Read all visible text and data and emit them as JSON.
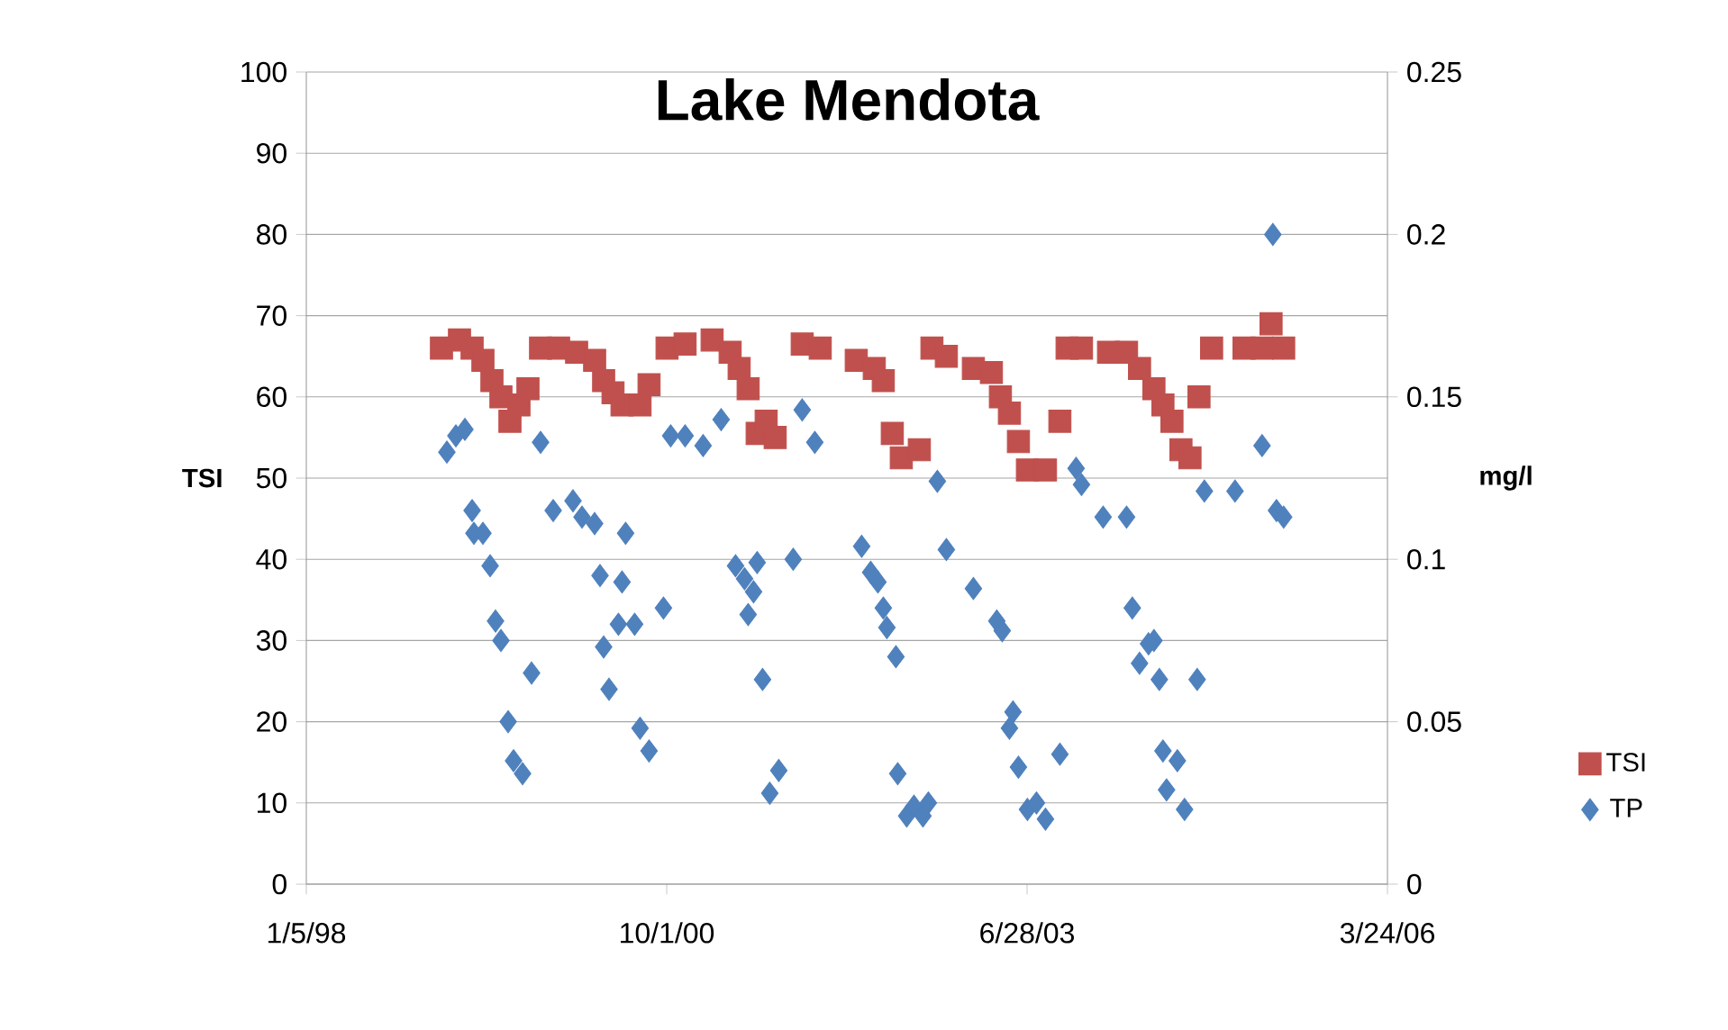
{
  "chart_data": {
    "type": "scatter",
    "title": "Lake Mendota",
    "ylabel": "TSI",
    "y2label": "mg/l",
    "xlim": [
      "1998-01-05",
      "2006-03-24"
    ],
    "xticks": [
      {
        "value": "1998-01-05",
        "label": "1/5/98"
      },
      {
        "value": "2000-10-01",
        "label": "10/1/00"
      },
      {
        "value": "2003-06-28",
        "label": "6/28/03"
      },
      {
        "value": "2006-03-24",
        "label": "3/24/06"
      }
    ],
    "ylim": [
      0,
      100
    ],
    "yticks": [
      0,
      10,
      20,
      30,
      40,
      50,
      60,
      70,
      80,
      90,
      100
    ],
    "y2lim": [
      0,
      0.25
    ],
    "y2ticks": [
      0,
      0.05,
      0.1,
      0.15,
      0.2,
      0.25
    ],
    "grid": "y",
    "legend": "right",
    "series": [
      {
        "name": "TSI",
        "color": "#c0504d",
        "marker": "square",
        "x": [
          "1999-01-15",
          "1999-03-06",
          "1999-04-10",
          "1999-05-10",
          "1999-06-04",
          "1999-06-29",
          "1999-07-24",
          "1999-08-18",
          "1999-09-12",
          "1999-10-17",
          "1999-12-06",
          "2000-01-25",
          "2000-03-15",
          "2000-04-09",
          "2000-05-05",
          "2000-05-30",
          "2000-07-19",
          "2000-08-13",
          "2000-10-02",
          "2000-11-21",
          "2001-02-04",
          "2001-03-26",
          "2001-04-20",
          "2001-05-15",
          "2001-06-09",
          "2001-07-04",
          "2001-07-29",
          "2001-10-12",
          "2001-12-01",
          "2002-03-11",
          "2002-04-30",
          "2002-05-25",
          "2002-06-19",
          "2002-07-14",
          "2002-09-02",
          "2002-10-07",
          "2002-11-16",
          "2003-01-30",
          "2003-03-21",
          "2003-04-15",
          "2003-05-10",
          "2003-06-04",
          "2003-06-29",
          "2003-08-18",
          "2003-09-27",
          "2003-10-17",
          "2003-11-26",
          "2004-02-09",
          "2004-03-30",
          "2004-05-05",
          "2004-06-14",
          "2004-07-09",
          "2004-08-03",
          "2004-08-28",
          "2004-09-22",
          "2004-10-17",
          "2004-11-21",
          "2005-02-19",
          "2005-04-10",
          "2005-05-05",
          "2005-06-09"
        ],
        "values": [
          66,
          67,
          66,
          64.5,
          62,
          60,
          57,
          59,
          61,
          66,
          66,
          65.5,
          64.5,
          62,
          60.5,
          59,
          59,
          61.5,
          66,
          66.5,
          67,
          65.5,
          63.5,
          61,
          55.5,
          57,
          55,
          66.5,
          66,
          64.5,
          63.5,
          62,
          55.5,
          52.5,
          53.5,
          66,
          65,
          63.5,
          63,
          60,
          58,
          54.5,
          51,
          51,
          57,
          66,
          66,
          65.5,
          65.5,
          63.5,
          61,
          59,
          57,
          53.5,
          52.5,
          60,
          66,
          66,
          66,
          69,
          66
        ]
      },
      {
        "name": "TP",
        "color": "#4f81bd",
        "marker": "diamond",
        "axis": "y2",
        "x": [
          "1999-01-30",
          "1999-02-24",
          "1999-03-21",
          "1999-04-10",
          "1999-04-15",
          "1999-05-10",
          "1999-05-30",
          "1999-06-14",
          "1999-06-29",
          "1999-07-19",
          "1999-08-03",
          "1999-08-28",
          "1999-09-22",
          "1999-10-17",
          "1999-11-21",
          "2000-01-15",
          "2000-02-09",
          "2000-03-15",
          "2000-03-30",
          "2000-04-09",
          "2000-04-24",
          "2000-05-20",
          "2000-05-30",
          "2000-06-09",
          "2000-07-04",
          "2000-07-19",
          "2000-08-13",
          "2000-09-22",
          "2000-10-12",
          "2000-11-21",
          "2001-01-10",
          "2001-03-01",
          "2001-04-10",
          "2001-05-05",
          "2001-05-15",
          "2001-05-30",
          "2001-06-09",
          "2001-06-24",
          "2001-07-14",
          "2001-08-08",
          "2001-09-17",
          "2001-10-12",
          "2001-11-16",
          "2002-03-26",
          "2002-04-20",
          "2002-05-10",
          "2002-05-25",
          "2002-06-04",
          "2002-06-29",
          "2002-07-04",
          "2002-07-29",
          "2002-08-18",
          "2002-09-12",
          "2002-09-27",
          "2002-10-22",
          "2002-11-16",
          "2003-01-30",
          "2003-04-05",
          "2003-04-20",
          "2003-05-10",
          "2003-05-20",
          "2003-06-04",
          "2003-06-29",
          "2003-07-24",
          "2003-08-18",
          "2003-09-27",
          "2003-11-11",
          "2003-11-26",
          "2004-01-25",
          "2004-03-30",
          "2004-04-15",
          "2004-05-05",
          "2004-05-30",
          "2004-06-14",
          "2004-06-29",
          "2004-07-09",
          "2004-07-19",
          "2004-08-18",
          "2004-09-07",
          "2004-10-12",
          "2004-11-01",
          "2005-01-25",
          "2005-04-10",
          "2005-05-10",
          "2005-05-20",
          "2005-06-09"
        ],
        "values": [
          0.133,
          0.138,
          0.14,
          0.115,
          0.108,
          0.108,
          0.098,
          0.081,
          0.075,
          0.05,
          0.038,
          0.034,
          0.065,
          0.136,
          0.115,
          0.118,
          0.113,
          0.111,
          0.095,
          0.073,
          0.06,
          0.08,
          0.093,
          0.108,
          0.08,
          0.048,
          0.041,
          0.085,
          0.138,
          0.138,
          0.135,
          0.143,
          0.098,
          0.094,
          0.083,
          0.09,
          0.099,
          0.063,
          0.028,
          0.035,
          0.1,
          0.146,
          0.136,
          0.104,
          0.096,
          0.093,
          0.085,
          0.079,
          0.07,
          0.034,
          0.021,
          0.024,
          0.021,
          0.025,
          0.124,
          0.103,
          0.091,
          0.081,
          0.078,
          0.048,
          0.053,
          0.036,
          0.023,
          0.025,
          0.02,
          0.04,
          0.128,
          0.123,
          0.113,
          0.113,
          0.085,
          0.068,
          0.074,
          0.075,
          0.063,
          0.041,
          0.029,
          0.038,
          0.023,
          0.063,
          0.121,
          0.121,
          0.135,
          0.2,
          0.115,
          0.113
        ]
      }
    ]
  }
}
